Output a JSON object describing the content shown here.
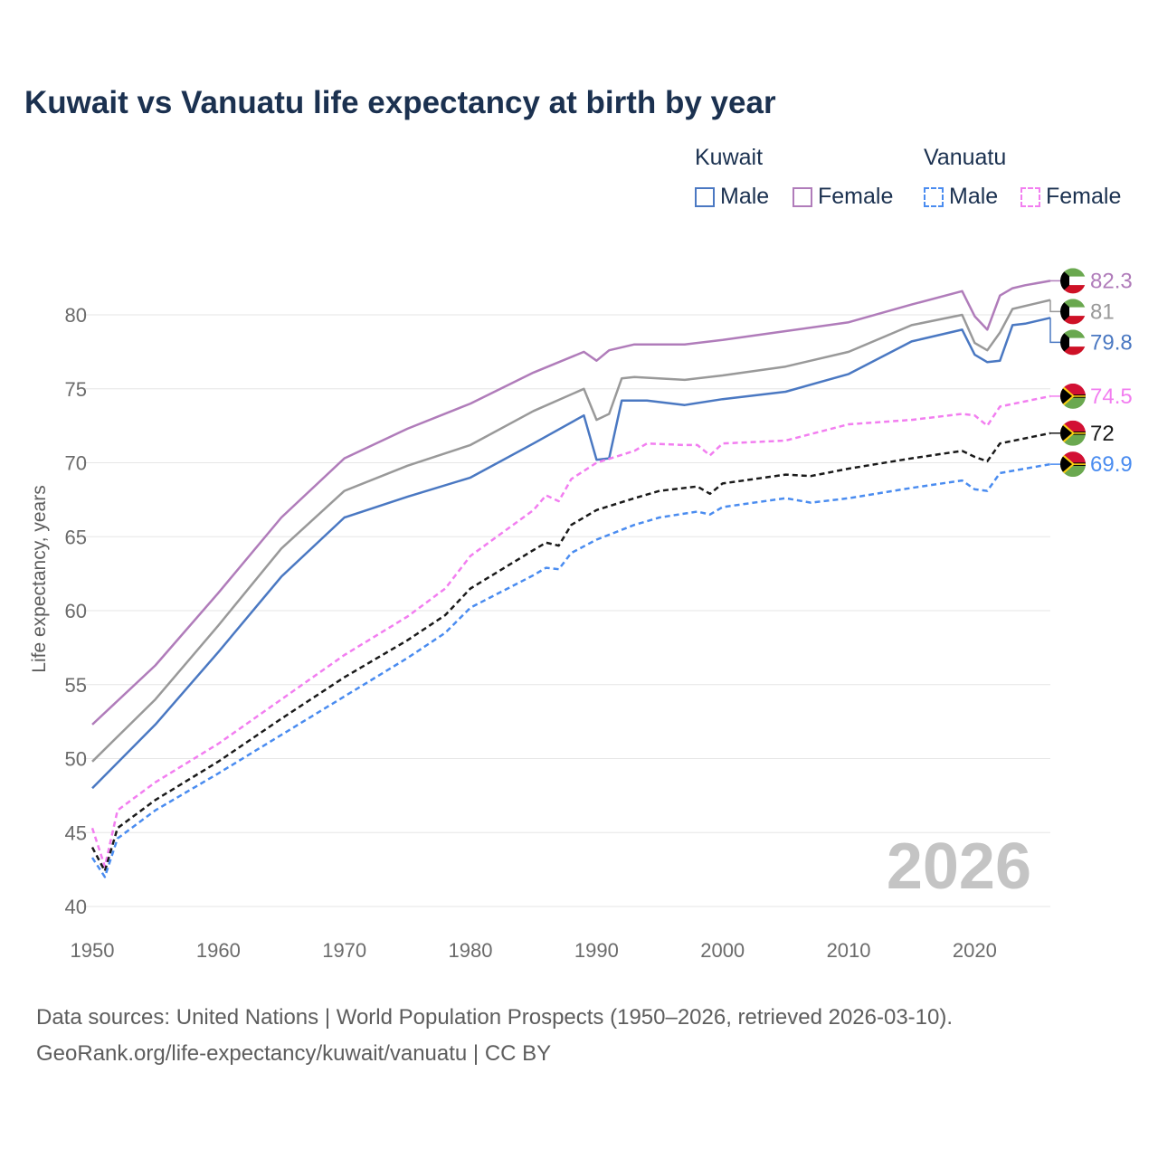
{
  "title": "Kuwait vs Vanuatu life expectancy at birth by year",
  "legend": {
    "groups": [
      {
        "name": "Kuwait",
        "items": [
          "Male",
          "Female"
        ]
      },
      {
        "name": "Vanuatu",
        "items": [
          "Male",
          "Female"
        ]
      }
    ]
  },
  "watermark_year": "2026",
  "source": {
    "line1": "Data sources: United Nations | World Population Prospects (1950–2026, retrieved 2026-03-10).",
    "line2": "GeoRank.org/life-expectancy/kuwait/vanuatu | CC BY"
  },
  "colors": {
    "kuwait_male": "#4a78c2",
    "kuwait_female": "#b07cba",
    "kuwait_total": "#999999",
    "vanuatu_male": "#4a8cf0",
    "vanuatu_female": "#f27ef0",
    "vanuatu_total": "#1a1a1a",
    "grid": "#e6e6e6",
    "axis_text": "#6b6b6b"
  },
  "chart_data": {
    "type": "line",
    "title": "Kuwait vs Vanuatu life expectancy at birth by year",
    "xlabel": "",
    "ylabel": "Life expectancy, years",
    "xlim": [
      1950,
      2026
    ],
    "ylim": [
      40,
      84
    ],
    "x_ticks": [
      1950,
      1960,
      1970,
      1980,
      1990,
      2000,
      2010,
      2020
    ],
    "y_ticks": [
      40,
      45,
      50,
      55,
      60,
      65,
      70,
      75,
      80
    ],
    "grid": true,
    "series": [
      {
        "name": "Kuwait Female",
        "country": "Kuwait",
        "sex": "Female",
        "style": "solid",
        "color_key": "kuwait_female",
        "end_label": "82.3",
        "points": [
          [
            1950,
            52.3
          ],
          [
            1955,
            56.3
          ],
          [
            1960,
            61.2
          ],
          [
            1965,
            66.3
          ],
          [
            1970,
            70.3
          ],
          [
            1975,
            72.3
          ],
          [
            1980,
            74.0
          ],
          [
            1985,
            76.1
          ],
          [
            1989,
            77.5
          ],
          [
            1990,
            76.9
          ],
          [
            1991,
            77.6
          ],
          [
            1993,
            78.0
          ],
          [
            1997,
            78.0
          ],
          [
            2000,
            78.3
          ],
          [
            2005,
            78.9
          ],
          [
            2010,
            79.5
          ],
          [
            2015,
            80.7
          ],
          [
            2019,
            81.6
          ],
          [
            2020,
            79.9
          ],
          [
            2021,
            79.0
          ],
          [
            2022,
            81.3
          ],
          [
            2023,
            81.8
          ],
          [
            2024,
            82.0
          ],
          [
            2026,
            82.3
          ]
        ]
      },
      {
        "name": "Kuwait Total",
        "country": "Kuwait",
        "sex": "Total",
        "style": "solid",
        "color_key": "kuwait_total",
        "end_label": "81",
        "points": [
          [
            1950,
            49.8
          ],
          [
            1955,
            54.0
          ],
          [
            1960,
            59.0
          ],
          [
            1965,
            64.2
          ],
          [
            1970,
            68.1
          ],
          [
            1975,
            69.8
          ],
          [
            1980,
            71.2
          ],
          [
            1985,
            73.5
          ],
          [
            1989,
            75.0
          ],
          [
            1990,
            72.9
          ],
          [
            1991,
            73.3
          ],
          [
            1992,
            75.7
          ],
          [
            1993,
            75.8
          ],
          [
            1997,
            75.6
          ],
          [
            2000,
            75.9
          ],
          [
            2005,
            76.5
          ],
          [
            2010,
            77.5
          ],
          [
            2015,
            79.3
          ],
          [
            2019,
            80.0
          ],
          [
            2020,
            78.1
          ],
          [
            2021,
            77.6
          ],
          [
            2022,
            78.8
          ],
          [
            2023,
            80.4
          ],
          [
            2026,
            81.0
          ]
        ]
      },
      {
        "name": "Kuwait Male",
        "country": "Kuwait",
        "sex": "Male",
        "style": "solid",
        "color_key": "kuwait_male",
        "end_label": "79.8",
        "points": [
          [
            1950,
            48.0
          ],
          [
            1955,
            52.3
          ],
          [
            1960,
            57.2
          ],
          [
            1965,
            62.3
          ],
          [
            1970,
            66.3
          ],
          [
            1975,
            67.7
          ],
          [
            1980,
            69.0
          ],
          [
            1985,
            71.3
          ],
          [
            1989,
            73.2
          ],
          [
            1990,
            70.2
          ],
          [
            1991,
            70.3
          ],
          [
            1992,
            74.2
          ],
          [
            1994,
            74.2
          ],
          [
            1997,
            73.9
          ],
          [
            2000,
            74.3
          ],
          [
            2005,
            74.8
          ],
          [
            2010,
            76.0
          ],
          [
            2015,
            78.2
          ],
          [
            2019,
            79.0
          ],
          [
            2020,
            77.3
          ],
          [
            2021,
            76.8
          ],
          [
            2022,
            76.9
          ],
          [
            2023,
            79.3
          ],
          [
            2024,
            79.4
          ],
          [
            2026,
            79.8
          ]
        ]
      },
      {
        "name": "Vanuatu Female",
        "country": "Vanuatu",
        "sex": "Female",
        "style": "dashed",
        "color_key": "vanuatu_female",
        "end_label": "74.5",
        "points": [
          [
            1950,
            45.3
          ],
          [
            1951,
            42.7
          ],
          [
            1952,
            46.5
          ],
          [
            1955,
            48.4
          ],
          [
            1960,
            51.0
          ],
          [
            1965,
            54.0
          ],
          [
            1970,
            57.0
          ],
          [
            1975,
            59.6
          ],
          [
            1978,
            61.5
          ],
          [
            1980,
            63.7
          ],
          [
            1985,
            66.8
          ],
          [
            1986,
            67.8
          ],
          [
            1987,
            67.4
          ],
          [
            1988,
            68.9
          ],
          [
            1990,
            70.0
          ],
          [
            1993,
            70.8
          ],
          [
            1994,
            71.3
          ],
          [
            1997,
            71.2
          ],
          [
            1998,
            71.2
          ],
          [
            1999,
            70.5
          ],
          [
            2000,
            71.3
          ],
          [
            2005,
            71.5
          ],
          [
            2010,
            72.6
          ],
          [
            2015,
            72.9
          ],
          [
            2019,
            73.3
          ],
          [
            2020,
            73.2
          ],
          [
            2021,
            72.5
          ],
          [
            2022,
            73.8
          ],
          [
            2026,
            74.5
          ]
        ]
      },
      {
        "name": "Vanuatu Total",
        "country": "Vanuatu",
        "sex": "Total",
        "style": "dashed",
        "color_key": "vanuatu_total",
        "end_label": "72",
        "points": [
          [
            1950,
            44.0
          ],
          [
            1951,
            42.4
          ],
          [
            1952,
            45.3
          ],
          [
            1955,
            47.2
          ],
          [
            1960,
            49.8
          ],
          [
            1965,
            52.7
          ],
          [
            1970,
            55.5
          ],
          [
            1975,
            58.0
          ],
          [
            1978,
            59.7
          ],
          [
            1980,
            61.5
          ],
          [
            1985,
            64.1
          ],
          [
            1986,
            64.6
          ],
          [
            1987,
            64.4
          ],
          [
            1988,
            65.8
          ],
          [
            1990,
            66.8
          ],
          [
            1993,
            67.6
          ],
          [
            1995,
            68.1
          ],
          [
            1998,
            68.4
          ],
          [
            1999,
            67.9
          ],
          [
            2000,
            68.6
          ],
          [
            2005,
            69.2
          ],
          [
            2007,
            69.1
          ],
          [
            2010,
            69.6
          ],
          [
            2015,
            70.3
          ],
          [
            2019,
            70.8
          ],
          [
            2020,
            70.4
          ],
          [
            2021,
            70.1
          ],
          [
            2022,
            71.3
          ],
          [
            2026,
            72.0
          ]
        ]
      },
      {
        "name": "Vanuatu Male",
        "country": "Vanuatu",
        "sex": "Male",
        "style": "dashed",
        "color_key": "vanuatu_male",
        "end_label": "69.9",
        "points": [
          [
            1950,
            43.3
          ],
          [
            1951,
            42.0
          ],
          [
            1952,
            44.6
          ],
          [
            1955,
            46.5
          ],
          [
            1960,
            49.0
          ],
          [
            1965,
            51.6
          ],
          [
            1970,
            54.2
          ],
          [
            1975,
            56.8
          ],
          [
            1978,
            58.5
          ],
          [
            1980,
            60.2
          ],
          [
            1985,
            62.4
          ],
          [
            1986,
            62.9
          ],
          [
            1987,
            62.8
          ],
          [
            1988,
            63.9
          ],
          [
            1990,
            64.8
          ],
          [
            1993,
            65.8
          ],
          [
            1995,
            66.3
          ],
          [
            1998,
            66.7
          ],
          [
            1999,
            66.5
          ],
          [
            2000,
            67.0
          ],
          [
            2005,
            67.6
          ],
          [
            2007,
            67.3
          ],
          [
            2010,
            67.6
          ],
          [
            2015,
            68.3
          ],
          [
            2019,
            68.8
          ],
          [
            2020,
            68.2
          ],
          [
            2021,
            68.1
          ],
          [
            2022,
            69.3
          ],
          [
            2026,
            69.9
          ]
        ]
      }
    ]
  }
}
